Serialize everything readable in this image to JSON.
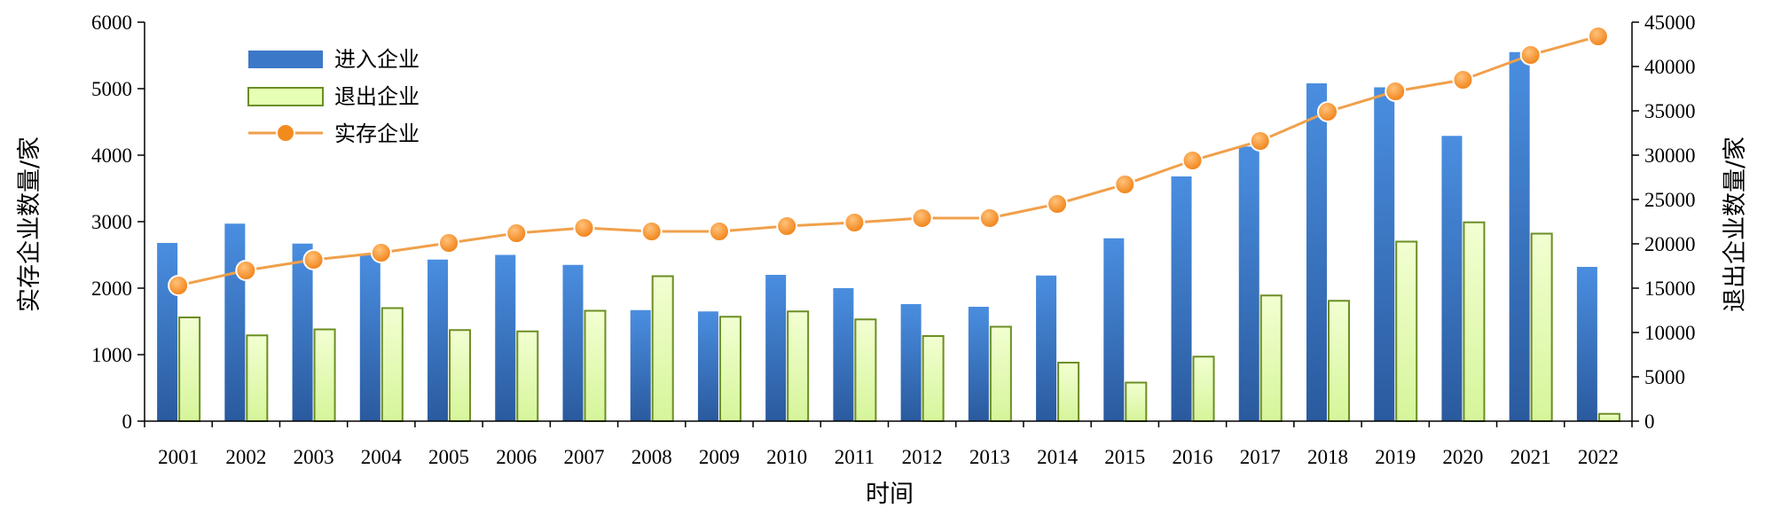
{
  "colors": {
    "entered": "#3c78c8",
    "exited_fill": "#e6ffb4",
    "exited_stroke": "#6b8e23",
    "surviving": "#f0a04b",
    "surviving_marker": "#f28b1e"
  },
  "chart_data": {
    "type": "bar",
    "title": "",
    "xlabel": "时间",
    "ylabel_left": "实存企业数量/家",
    "ylabel_right": "退出企业数量/家",
    "ylim_left": [
      0,
      6000
    ],
    "ylim_right": [
      0,
      45000
    ],
    "yticks_left": [
      "0",
      "1000",
      "2000",
      "3000",
      "4000",
      "5000",
      "6000"
    ],
    "yticks_right": [
      "0",
      "5000",
      "10000",
      "15000",
      "20000",
      "25000",
      "30000",
      "35000",
      "40000",
      "45000"
    ],
    "categories": [
      "2001",
      "2002",
      "2003",
      "2004",
      "2005",
      "2006",
      "2007",
      "2008",
      "2009",
      "2010",
      "2011",
      "2012",
      "2013",
      "2014",
      "2015",
      "2016",
      "2017",
      "2018",
      "2019",
      "2020",
      "2021",
      "2022"
    ],
    "legend_position": "top-left",
    "series": [
      {
        "name": "进入企业",
        "type": "bar",
        "axis": "left",
        "values": [
          2680,
          2970,
          2670,
          2510,
          2430,
          2500,
          2350,
          1670,
          1650,
          2200,
          2000,
          1760,
          1720,
          2190,
          2750,
          3680,
          4130,
          5080,
          5020,
          4290,
          5550,
          2320
        ]
      },
      {
        "name": "退出企业",
        "type": "bar",
        "axis": "left",
        "values": [
          1560,
          1290,
          1380,
          1700,
          1370,
          1350,
          1660,
          2180,
          1570,
          1650,
          1530,
          1280,
          1420,
          880,
          580,
          970,
          1890,
          1810,
          2700,
          2990,
          2820,
          110
        ]
      },
      {
        "name": "实存企业",
        "type": "line",
        "axis": "right",
        "values": [
          15300,
          17000,
          18200,
          19000,
          20100,
          21200,
          21800,
          21400,
          21400,
          22000,
          22400,
          22900,
          22900,
          24500,
          26700,
          29400,
          31600,
          34900,
          37200,
          38500,
          41300,
          43400
        ]
      }
    ]
  }
}
